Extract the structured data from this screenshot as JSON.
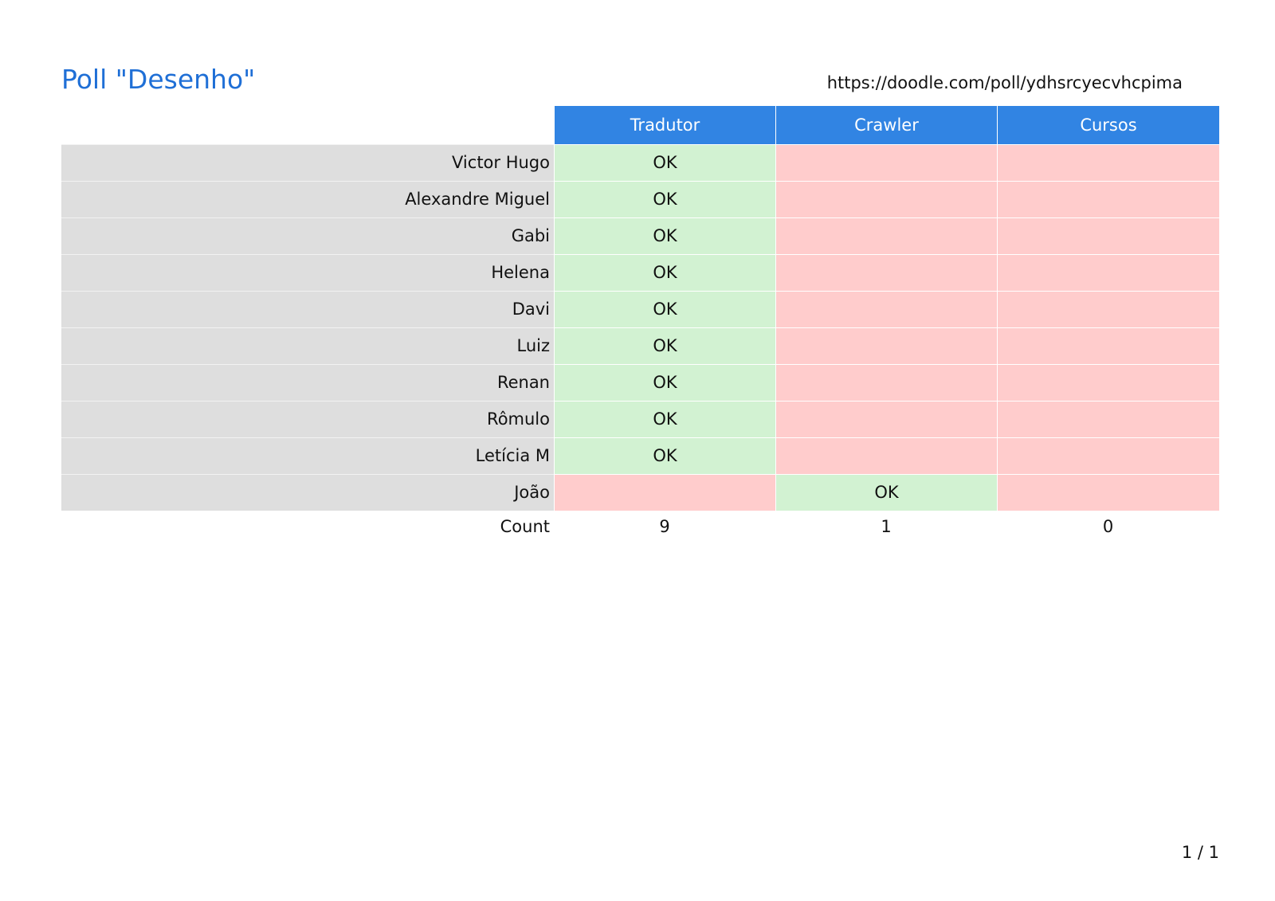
{
  "header": {
    "title": "Poll \"Desenho\"",
    "url": "https://doodle.com/poll/ydhsrcyecvhcpima"
  },
  "columns": [
    "Tradutor",
    "Crawler",
    "Cursos"
  ],
  "rows": [
    {
      "name": "Victor Hugo",
      "votes": [
        "OK",
        "",
        ""
      ],
      "status": [
        "yes",
        "no",
        "no"
      ]
    },
    {
      "name": "Alexandre Miguel",
      "votes": [
        "OK",
        "",
        ""
      ],
      "status": [
        "yes",
        "no",
        "no"
      ]
    },
    {
      "name": "Gabi",
      "votes": [
        "OK",
        "",
        ""
      ],
      "status": [
        "yes",
        "no",
        "no"
      ]
    },
    {
      "name": "Helena",
      "votes": [
        "OK",
        "",
        ""
      ],
      "status": [
        "yes",
        "no",
        "no"
      ]
    },
    {
      "name": "Davi",
      "votes": [
        "OK",
        "",
        ""
      ],
      "status": [
        "yes",
        "no",
        "no"
      ]
    },
    {
      "name": "Luiz",
      "votes": [
        "OK",
        "",
        ""
      ],
      "status": [
        "yes",
        "no",
        "no"
      ]
    },
    {
      "name": "Renan",
      "votes": [
        "OK",
        "",
        ""
      ],
      "status": [
        "yes",
        "no",
        "no"
      ]
    },
    {
      "name": "Rômulo",
      "votes": [
        "OK",
        "",
        ""
      ],
      "status": [
        "yes",
        "no",
        "no"
      ]
    },
    {
      "name": "Letícia M",
      "votes": [
        "OK",
        "",
        ""
      ],
      "status": [
        "yes",
        "no",
        "no"
      ]
    },
    {
      "name": "João",
      "votes": [
        "",
        "OK",
        ""
      ],
      "status": [
        "no",
        "yes",
        "no"
      ]
    }
  ],
  "count": {
    "label": "Count",
    "values": [
      "9",
      "1",
      "0"
    ]
  },
  "footer": {
    "page": "1 / 1"
  },
  "colors": {
    "title": "#1f6fd6",
    "header_bg": "#3184e3",
    "yes_bg": "#d2f2d2",
    "no_bg": "#ffcccc",
    "name_bg": "#dedede"
  }
}
